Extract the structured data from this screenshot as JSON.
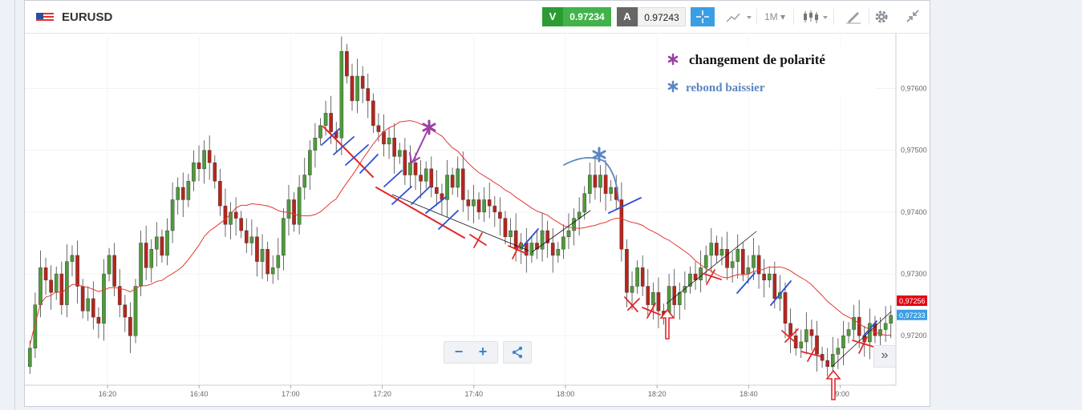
{
  "instrument": {
    "symbol": "EURUSD"
  },
  "prices": {
    "sell_label": "V",
    "sell_value": "0.97234",
    "buy_label": "A",
    "buy_value": "0.97243"
  },
  "toolbar": {
    "timeframe": "1M"
  },
  "colors": {
    "up": "#4f9a3c",
    "down": "#b5261e",
    "ma": "#e23a32",
    "price_tag": "#e30613",
    "bid_tag": "#3a9ee4"
  },
  "icons": [
    "flag-icon",
    "crosshair-icon",
    "indicator-icon",
    "candles-icon",
    "draw-icon",
    "gear-icon",
    "fullscreen-icon",
    "zoom-out-icon",
    "zoom-in-icon",
    "share-icon",
    "scroll-right-icon"
  ],
  "annotations": {
    "legend_polarity": "changement de polarité",
    "legend_rebound": "rebond baissier"
  },
  "chart_data": {
    "type": "candlestick",
    "x_ticks": [
      "16:20",
      "16:40",
      "17:00",
      "17:20",
      "17:40",
      "18:00",
      "18:20",
      "18:40",
      "19:00"
    ],
    "y_ticks": [
      "0,97600",
      "0,97500",
      "0,97400",
      "0,97300",
      "0,97200"
    ],
    "ylim": [
      0.9712,
      0.9769
    ],
    "price_tags": [
      "0,97256",
      "0,97233"
    ],
    "close": [
      0.9718,
      0.9725,
      0.9731,
      0.9729,
      0.9727,
      0.973,
      0.9725,
      0.9732,
      0.9733,
      0.9728,
      0.9724,
      0.9726,
      0.9723,
      0.9722,
      0.973,
      0.9733,
      0.9728,
      0.9725,
      0.9723,
      0.972,
      0.9728,
      0.9735,
      0.9731,
      0.9734,
      0.9736,
      0.9733,
      0.9737,
      0.9742,
      0.9744,
      0.9742,
      0.9745,
      0.9748,
      0.9747,
      0.975,
      0.9748,
      0.9745,
      0.9741,
      0.9738,
      0.974,
      0.9739,
      0.9737,
      0.9735,
      0.9736,
      0.9732,
      0.9734,
      0.973,
      0.9731,
      0.9733,
      0.9739,
      0.9742,
      0.9738,
      0.9744,
      0.9746,
      0.975,
      0.9752,
      0.9754,
      0.9756,
      0.9753,
      0.9752,
      0.9766,
      0.9762,
      0.9758,
      0.9762,
      0.976,
      0.9758,
      0.9754,
      0.9753,
      0.9751,
      0.9752,
      0.9749,
      0.975,
      0.9746,
      0.9748,
      0.9746,
      0.9745,
      0.9747,
      0.9744,
      0.9743,
      0.9742,
      0.9746,
      0.9744,
      0.9747,
      0.9742,
      0.9741,
      0.9742,
      0.974,
      0.9742,
      0.9741,
      0.974,
      0.9739,
      0.9736,
      0.9737,
      0.9734,
      0.9735,
      0.9733,
      0.9735,
      0.9734,
      0.9737,
      0.9735,
      0.9733,
      0.9734,
      0.9736,
      0.9737,
      0.9739,
      0.974,
      0.9743,
      0.9746,
      0.9744,
      0.9746,
      0.9743,
      0.9744,
      0.9742,
      0.9734,
      0.9727,
      0.9728,
      0.9731,
      0.9728,
      0.9725,
      0.9727,
      0.9724,
      0.9723,
      0.9728,
      0.9725,
      0.9727,
      0.9728,
      0.973,
      0.9729,
      0.9731,
      0.9733,
      0.9735,
      0.9733,
      0.9734,
      0.9731,
      0.9732,
      0.9734,
      0.973,
      0.9731,
      0.9733,
      0.973,
      0.9729,
      0.973,
      0.9726,
      0.9727,
      0.9722,
      0.972,
      0.9718,
      0.9719,
      0.9721,
      0.972,
      0.9717,
      0.9716,
      0.9715,
      0.9717,
      0.9718,
      0.972,
      0.9721,
      0.9723,
      0.972,
      0.9719,
      0.9722,
      0.972,
      0.9721,
      0.9722,
      0.97233
    ]
  }
}
